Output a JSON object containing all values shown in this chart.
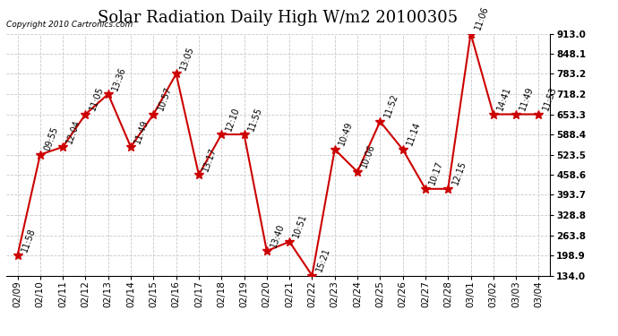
{
  "title": "Solar Radiation Daily High W/m2 20100305",
  "copyright": "Copyright 2010 Cartronics.com",
  "dates": [
    "02/09",
    "02/10",
    "02/11",
    "02/12",
    "02/13",
    "02/14",
    "02/15",
    "02/16",
    "02/17",
    "02/18",
    "02/19",
    "02/20",
    "02/21",
    "02/22",
    "02/23",
    "02/24",
    "02/25",
    "02/26",
    "02/27",
    "02/28",
    "03/01",
    "03/02",
    "03/03",
    "03/04"
  ],
  "values": [
    198.9,
    523.5,
    548.0,
    653.3,
    718.2,
    548.0,
    653.3,
    783.2,
    458.6,
    588.4,
    588.4,
    213.0,
    243.0,
    134.0,
    540.0,
    468.0,
    630.0,
    540.0,
    413.0,
    413.0,
    913.0,
    653.3,
    653.3,
    653.3
  ],
  "labels": [
    "11:58",
    "09:55",
    "12:04",
    "11:05",
    "13:36",
    "11:49",
    "10:57",
    "13:05",
    "13:17",
    "12:10",
    "11:55",
    "13:40",
    "10:51",
    "15:21",
    "10:49",
    "10:06",
    "11:52",
    "11:14",
    "10:17",
    "12:15",
    "11:06",
    "14:41",
    "11:49",
    "11:53"
  ],
  "ylim": [
    134.0,
    913.0
  ],
  "yticks": [
    134.0,
    198.9,
    263.8,
    328.8,
    393.7,
    458.6,
    523.5,
    588.4,
    653.3,
    718.2,
    783.2,
    848.1,
    913.0
  ],
  "line_color": "#cc0000",
  "marker_color": "#cc0000",
  "bg_color": "#ffffff",
  "grid_color": "#c8c8c8",
  "title_fontsize": 13,
  "label_fontsize": 7,
  "axis_fontsize": 7.5
}
